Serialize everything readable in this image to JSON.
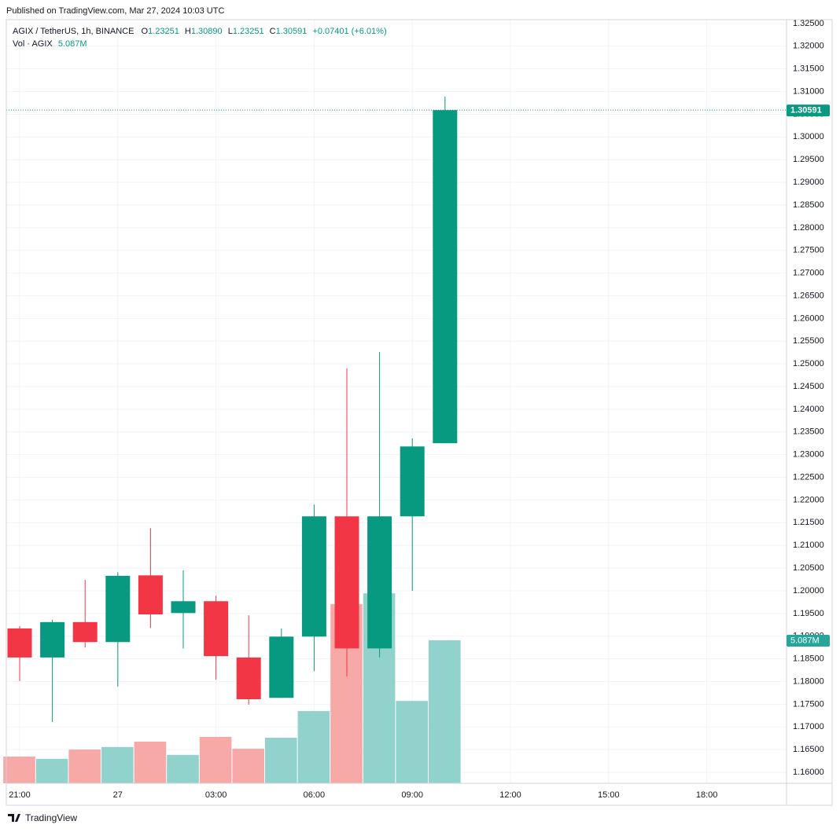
{
  "header": {
    "published": "Published on TradingView.com, Mar 27, 2024 10:03 UTC",
    "symbol": "AGIX / TetherUS, 1h, BINANCE",
    "o_label": "O",
    "o_value": "1.23251",
    "h_label": "H",
    "h_value": "1.30890",
    "l_label": "L",
    "l_value": "1.23251",
    "c_label": "C",
    "c_value": "1.30591",
    "change": "+0.07401 (+6.01%)"
  },
  "chart_data": {
    "type": "candlestick",
    "categories": [
      "21:00",
      null,
      null,
      "27",
      null,
      null,
      "03:00",
      null,
      null,
      "06:00",
      null,
      null,
      "09:00",
      null,
      null,
      "12:00",
      null,
      null,
      "15:00",
      null,
      null,
      "18:00"
    ],
    "open": [
      1.1917,
      1.1853,
      1.1931,
      1.1887,
      1.2034,
      1.1951,
      1.1977,
      1.1853,
      1.1764,
      1.1899,
      1.2164,
      1.1873,
      1.2164,
      1.23251,
      null,
      null,
      null,
      null,
      null,
      null,
      null,
      null
    ],
    "high": [
      1.1922,
      1.1936,
      1.2024,
      1.2041,
      1.2138,
      1.2045,
      1.1989,
      1.1946,
      1.1917,
      1.219,
      1.249,
      1.2526,
      1.2336,
      1.3089,
      null,
      null,
      null,
      null,
      null,
      null,
      null,
      null
    ],
    "low": [
      1.1801,
      1.1711,
      1.1875,
      1.1789,
      1.1918,
      1.1873,
      1.1804,
      1.1749,
      1.1764,
      1.1823,
      1.1811,
      1.1853,
      1.2,
      1.23251,
      null,
      null,
      null,
      null,
      null,
      null,
      null,
      null
    ],
    "close": [
      1.1853,
      1.1931,
      1.1887,
      1.2033,
      1.1948,
      1.1977,
      1.1856,
      1.1761,
      1.1899,
      1.2164,
      1.1873,
      1.2164,
      1.2318,
      1.30591,
      null,
      null,
      null,
      null,
      null,
      null,
      null,
      null
    ],
    "up_color": "#089981",
    "down_color": "#f23645",
    "volume": {
      "name": "Vol · AGIX",
      "values": [
        0.95,
        0.87,
        1.2,
        1.29,
        1.48,
        1.01,
        1.65,
        1.23,
        1.62,
        2.57,
        6.37,
        6.76,
        2.93,
        5.087,
        null,
        null,
        null,
        null,
        null,
        null,
        null,
        null
      ],
      "value_labels": [
        null,
        null,
        null,
        null,
        null,
        null,
        null,
        null,
        null,
        null,
        null,
        null,
        null,
        "5.087M",
        null,
        null,
        null,
        null,
        null,
        null,
        null,
        null
      ],
      "up_color": "#92d2cc",
      "down_color": "#f7a9a7"
    },
    "ylim": [
      1.15758,
      1.32585
    ],
    "yticks": [
      {
        "value": 1.16,
        "label": "1.16000"
      },
      {
        "value": 1.165,
        "label": "1.16500"
      },
      {
        "value": 1.17,
        "label": "1.17000"
      },
      {
        "value": 1.175,
        "label": "1.17500"
      },
      {
        "value": 1.18,
        "label": "1.18000"
      },
      {
        "value": 1.185,
        "label": "1.18500"
      },
      {
        "value": 1.19,
        "label": "1.19000"
      },
      {
        "value": 1.195,
        "label": "1.19500"
      },
      {
        "value": 1.2,
        "label": "1.20000"
      },
      {
        "value": 1.205,
        "label": "1.20500"
      },
      {
        "value": 1.21,
        "label": "1.21000"
      },
      {
        "value": 1.215,
        "label": "1.21500"
      },
      {
        "value": 1.22,
        "label": "1.22000"
      },
      {
        "value": 1.225,
        "label": "1.22500"
      },
      {
        "value": 1.23,
        "label": "1.23000"
      },
      {
        "value": 1.235,
        "label": "1.23500"
      },
      {
        "value": 1.24,
        "label": "1.24000"
      },
      {
        "value": 1.245,
        "label": "1.24500"
      },
      {
        "value": 1.25,
        "label": "1.25000"
      },
      {
        "value": 1.255,
        "label": "1.25500"
      },
      {
        "value": 1.26,
        "label": "1.26000"
      },
      {
        "value": 1.265,
        "label": "1.26500"
      },
      {
        "value": 1.27,
        "label": "1.27000"
      },
      {
        "value": 1.275,
        "label": "1.27500"
      },
      {
        "value": 1.28,
        "label": "1.28000"
      },
      {
        "value": 1.285,
        "label": "1.28500"
      },
      {
        "value": 1.29,
        "label": "1.29000"
      },
      {
        "value": 1.295,
        "label": "1.29500"
      },
      {
        "value": 1.3,
        "label": "1.30000"
      },
      {
        "value": 1.305,
        "label": "1.30500"
      },
      {
        "value": 1.31,
        "label": "1.31000"
      },
      {
        "value": 1.315,
        "label": "1.31500"
      },
      {
        "value": 1.32,
        "label": "1.32000"
      },
      {
        "value": 1.325,
        "label": "1.32500"
      }
    ],
    "grid": true
  },
  "footer": {
    "brand": "TradingView"
  }
}
